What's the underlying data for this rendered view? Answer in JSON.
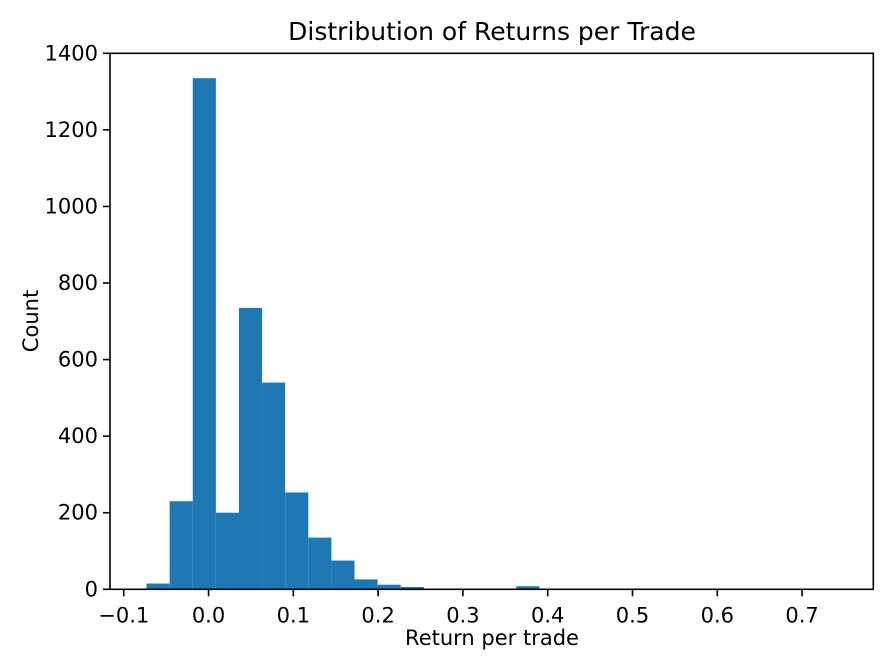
{
  "chart_data": {
    "type": "bar",
    "subtype": "histogram",
    "title": "Distribution of Returns per Trade",
    "xlabel": "Return per trade",
    "ylabel": "Count",
    "bar_color": "#1f77b4",
    "axes_color": "#000000",
    "background": "#ffffff",
    "grid": false,
    "legend": null,
    "bin_start": -0.0731,
    "bin_width": 0.02725,
    "counts": [
      15,
      230,
      1335,
      200,
      735,
      540,
      253,
      135,
      75,
      26,
      12,
      6,
      1,
      0,
      2,
      0,
      8,
      0,
      0,
      0,
      0,
      0,
      0,
      0,
      0,
      0,
      0,
      0,
      0,
      1
    ],
    "xlim": [
      -0.1162,
      0.784
    ],
    "ylim": [
      0,
      1400
    ],
    "xticks": {
      "values": [
        -0.1,
        0.0,
        0.1,
        0.2,
        0.3,
        0.4,
        0.5,
        0.6,
        0.7
      ],
      "labels": [
        "−0.1",
        "0.0",
        "0.1",
        "0.2",
        "0.3",
        "0.4",
        "0.5",
        "0.6",
        "0.7"
      ]
    },
    "yticks": {
      "values": [
        0,
        200,
        400,
        600,
        800,
        1000,
        1200,
        1400
      ],
      "labels": [
        "0",
        "200",
        "400",
        "600",
        "800",
        "1000",
        "1200",
        "1400"
      ]
    }
  }
}
